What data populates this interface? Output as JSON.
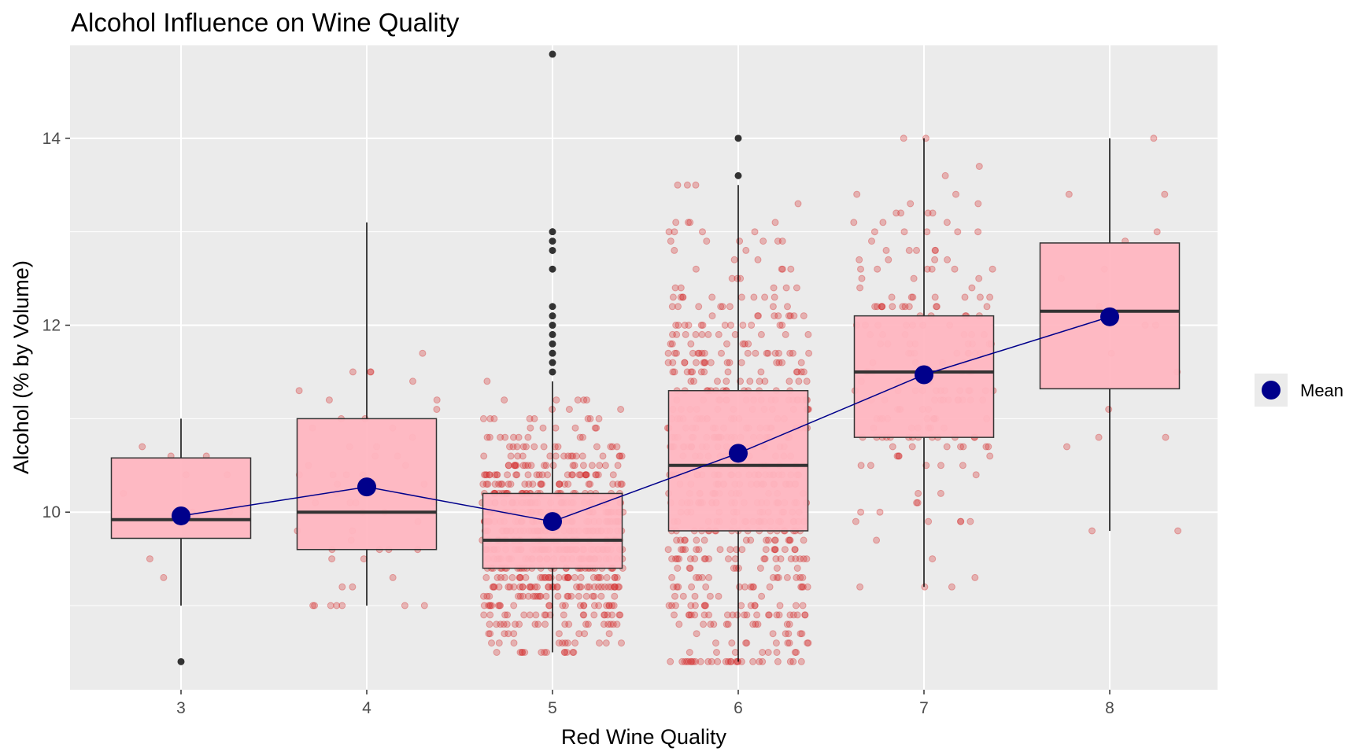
{
  "chart_data": {
    "type": "boxplot",
    "title": "Alcohol Influence on Wine Quality",
    "xlabel": "Red Wine Quality",
    "ylabel": "Alcohol (% by Volume)",
    "categories": [
      "3",
      "4",
      "5",
      "6",
      "7",
      "8"
    ],
    "ylim": [
      8.1,
      15.0
    ],
    "yticks": [
      10,
      12,
      14
    ],
    "grid": true,
    "legend": {
      "position": "right",
      "entries": [
        "Mean"
      ]
    },
    "boxes": [
      {
        "category": "3",
        "q1": 9.72,
        "median": 9.92,
        "q3": 10.58,
        "whisker_low": 9.0,
        "whisker_high": 11.0,
        "outliers": [
          8.4
        ]
      },
      {
        "category": "4",
        "q1": 9.6,
        "median": 10.0,
        "q3": 11.0,
        "whisker_low": 9.0,
        "whisker_high": 13.1,
        "outliers": []
      },
      {
        "category": "5",
        "q1": 9.4,
        "median": 9.7,
        "q3": 10.2,
        "whisker_low": 8.5,
        "whisker_high": 11.4,
        "outliers": [
          11.5,
          11.6,
          11.7,
          11.8,
          11.9,
          12.0,
          12.1,
          12.2,
          12.6,
          12.8,
          12.9,
          13.0,
          14.9
        ]
      },
      {
        "category": "6",
        "q1": 9.8,
        "median": 10.5,
        "q3": 11.3,
        "whisker_low": 8.4,
        "whisker_high": 13.5,
        "outliers": [
          13.6,
          14.0
        ]
      },
      {
        "category": "7",
        "q1": 10.8,
        "median": 11.5,
        "q3": 12.1,
        "whisker_low": 9.2,
        "whisker_high": 14.0,
        "outliers": []
      },
      {
        "category": "8",
        "q1": 11.32,
        "median": 12.15,
        "q3": 12.88,
        "whisker_low": 9.8,
        "whisker_high": 14.0,
        "outliers": []
      }
    ],
    "means": {
      "name": "Mean",
      "values": [
        9.96,
        10.27,
        9.9,
        10.63,
        11.47,
        12.09
      ]
    },
    "jitter_counts": [
      10,
      53,
      681,
      638,
      199,
      18
    ],
    "colors": {
      "panel_background": "#ebebeb",
      "grid": "#ffffff",
      "box_fill": "#ffb6c1",
      "box_border": "#333333",
      "points": "#d42a2a",
      "mean_marker": "#00008b",
      "mean_line": "#00008b",
      "outlier": "#333333"
    }
  }
}
